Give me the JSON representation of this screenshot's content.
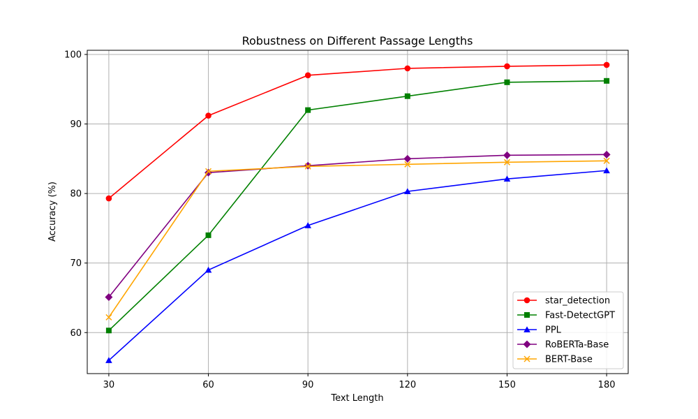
{
  "chart_data": {
    "type": "line",
    "title": "Robustness on Different Passage Lengths",
    "xlabel": "Text Length",
    "ylabel": "Accuracy (%)",
    "x": [
      30,
      60,
      90,
      120,
      150,
      180
    ],
    "xlim": [
      23.5,
      186.5
    ],
    "ylim": [
      54.1,
      100.6
    ],
    "yticks": [
      60,
      70,
      80,
      90,
      100
    ],
    "grid": true,
    "legend_position": "bottom-right",
    "series": [
      {
        "name": "star_detection",
        "color": "#ff0000",
        "marker": "circle",
        "values": [
          79.3,
          91.2,
          97.0,
          98.0,
          98.3,
          98.5
        ]
      },
      {
        "name": "Fast-DetectGPT",
        "color": "#008000",
        "marker": "square",
        "values": [
          60.3,
          74.0,
          92.0,
          94.0,
          96.0,
          96.2
        ]
      },
      {
        "name": "PPL",
        "color": "#0000ff",
        "marker": "triangle",
        "values": [
          56.0,
          69.0,
          75.4,
          80.3,
          82.1,
          83.3
        ]
      },
      {
        "name": "RoBERTa-Base",
        "color": "#800080",
        "marker": "diamond",
        "values": [
          65.1,
          83.0,
          84.0,
          85.0,
          85.5,
          85.6
        ]
      },
      {
        "name": "BERT-Base",
        "color": "#ffa500",
        "marker": "x",
        "values": [
          62.2,
          83.2,
          83.9,
          84.2,
          84.5,
          84.7
        ]
      }
    ]
  }
}
